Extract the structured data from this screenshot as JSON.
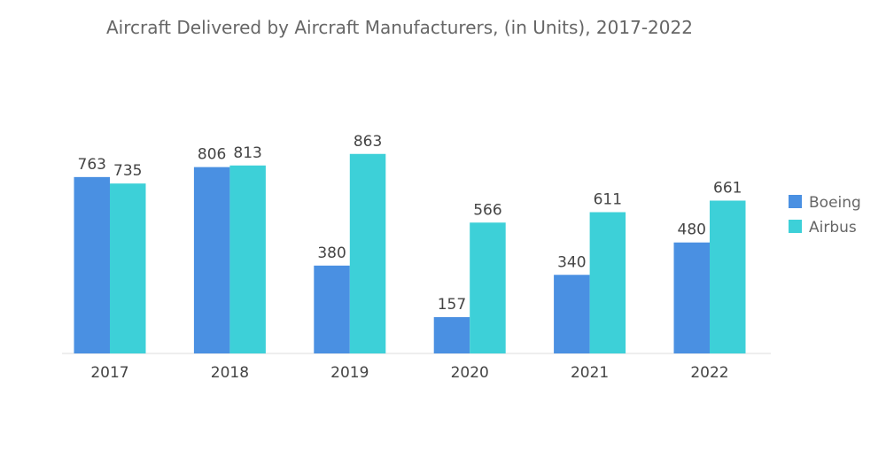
{
  "chart_data": {
    "type": "bar",
    "title": "Aircraft Delivered by Aircraft Manufacturers, (in Units), 2017-2022",
    "xlabel": "",
    "ylabel": "",
    "categories": [
      "2017",
      "2018",
      "2019",
      "2020",
      "2021",
      "2022"
    ],
    "series": [
      {
        "name": "Boeing",
        "color": "#4a90e2",
        "values": [
          763,
          806,
          380,
          157,
          340,
          480
        ]
      },
      {
        "name": "Airbus",
        "color": "#3dd0d8",
        "values": [
          735,
          813,
          863,
          566,
          611,
          661
        ]
      }
    ],
    "ylim": [
      0,
      1000
    ],
    "grid": false,
    "legend_position": "right",
    "data_labels": true
  }
}
